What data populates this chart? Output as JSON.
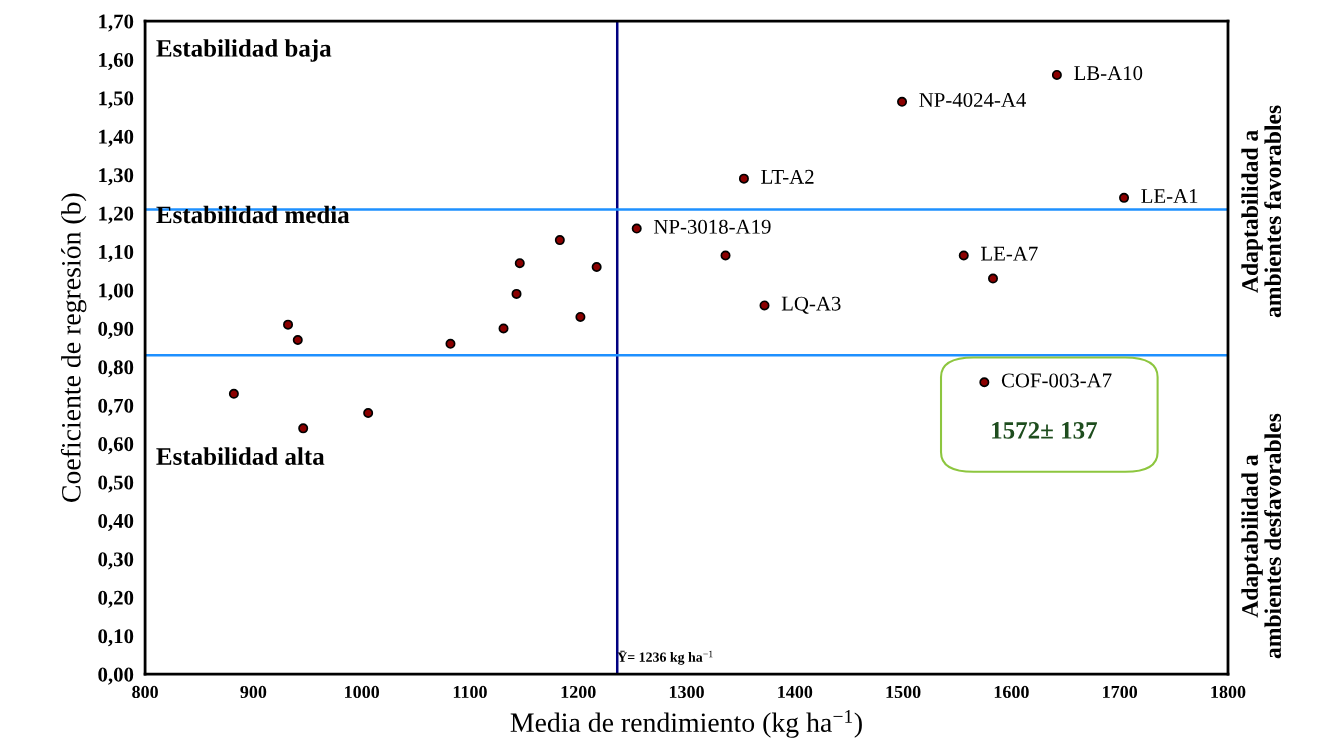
{
  "chart_data": {
    "type": "scatter",
    "xlabel": "Media de rendimiento (kg ha$^{−1}$)",
    "ylabel": "Coeficiente de regresión (b)",
    "xlim": [
      800,
      1800
    ],
    "xticks": [
      800,
      900,
      1000,
      1100,
      1200,
      1300,
      1400,
      1500,
      1600,
      1700,
      1800
    ],
    "ylim": [
      0,
      1.7
    ],
    "yticks": [
      {
        "value": 0,
        "label": "0,00"
      },
      {
        "value": 0.1,
        "label": "0,10"
      },
      {
        "value": 0.2,
        "label": "0,20"
      },
      {
        "value": 0.3,
        "label": "0,30"
      },
      {
        "value": 0.4,
        "label": "0,40"
      },
      {
        "value": 0.5,
        "label": "0,50"
      },
      {
        "value": 0.6,
        "label": "0,60"
      },
      {
        "value": 0.7,
        "label": "0,70"
      },
      {
        "value": 0.8,
        "label": "0,80"
      },
      {
        "value": 0.9,
        "label": "0,90"
      },
      {
        "value": 1.0,
        "label": "1,00"
      },
      {
        "value": 1.1,
        "label": "1,10"
      },
      {
        "value": 1.2,
        "label": "1,20"
      },
      {
        "value": 1.3,
        "label": "1,30"
      },
      {
        "value": 1.4,
        "label": "1,40"
      },
      {
        "value": 1.5,
        "label": "1,50"
      },
      {
        "value": 1.6,
        "label": "1,60"
      },
      {
        "value": 1.7,
        "label": "1,70"
      }
    ],
    "grid": false,
    "marker": "circle",
    "series": [
      {
        "color": "#8b0000",
        "x": [
          1183,
          1146,
          1217,
          1143,
          1202,
          1131,
          1082,
          932,
          941,
          882,
          1006,
          946,
          1642,
          1499,
          1353,
          1704,
          1254,
          1336,
          1556,
          1583,
          1372,
          1575
        ],
        "values": [
          1.13,
          1.07,
          1.06,
          0.99,
          0.93,
          0.9,
          0.86,
          0.91,
          0.87,
          0.73,
          0.68,
          0.64,
          1.56,
          1.49,
          1.29,
          1.24,
          1.16,
          1.09,
          1.09,
          1.03,
          0.96,
          0.76
        ]
      }
    ],
    "ref_lines": [
      {
        "axis": "x",
        "value": 1236,
        "label": "Ȳ= 1236 kg ha$^{−1}$",
        "color": "#000080"
      },
      {
        "axis": "y",
        "value": 1.21,
        "label": null,
        "color": "#1e90ff"
      },
      {
        "axis": "y",
        "value": 0.83,
        "label": null,
        "color": "#1e90ff"
      }
    ],
    "annotations": [
      {
        "text": "LB-A10",
        "x": 1642,
        "y": 1.56
      },
      {
        "text": "NP-4024-A4",
        "x": 1499,
        "y": 1.49
      },
      {
        "text": "LT-A2",
        "x": 1353,
        "y": 1.29
      },
      {
        "text": "LE-A1",
        "x": 1704,
        "y": 1.24
      },
      {
        "text": "NP-3018-A19",
        "x": 1254,
        "y": 1.16
      },
      {
        "text": "LE-A7",
        "x": 1556,
        "y": 1.09
      },
      {
        "text": "LQ-A3",
        "x": 1372,
        "y": 0.96
      },
      {
        "text": "COF-003-A7",
        "x": 1575,
        "y": 0.76
      },
      "Estabilidad baja",
      "Estabilidad media",
      "Estabilidad alta",
      "1572± 137",
      "Adaptabilidad a\nambientes favorables",
      "Adaptabilidad a\nambientes desfavorables"
    ]
  }
}
